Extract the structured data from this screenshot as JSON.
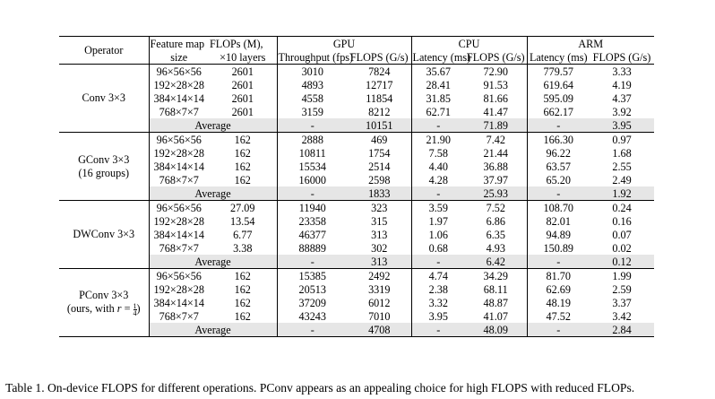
{
  "headers": {
    "operator": "Operator",
    "feature_map_1": "Feature map",
    "feature_map_2": "size",
    "flops_1": "FLOPs (M),",
    "flops_2": "×10 layers",
    "gpu": "GPU",
    "cpu": "CPU",
    "arm": "ARM",
    "throughput": "Throughput (fps)",
    "gpu_flops": "FLOPS (G/s)",
    "cpu_latency": "Latency (ms)",
    "cpu_flops": "FLOPS (G/s)",
    "arm_latency": "Latency (ms)",
    "arm_flops": "FLOPS (G/s)"
  },
  "groups": [
    {
      "operator": "Conv 3×3",
      "rows": [
        [
          "96×56×56",
          "2601",
          "3010",
          "7824",
          "35.67",
          "72.90",
          "779.57",
          "3.33"
        ],
        [
          "192×28×28",
          "2601",
          "4893",
          "12717",
          "28.41",
          "91.53",
          "619.64",
          "4.19"
        ],
        [
          "384×14×14",
          "2601",
          "4558",
          "11854",
          "31.85",
          "81.66",
          "595.09",
          "4.37"
        ],
        [
          "768×7×7",
          "2601",
          "3159",
          "8212",
          "62.71",
          "41.47",
          "662.17",
          "3.92"
        ]
      ],
      "average": [
        "Average",
        "-",
        "10151",
        "-",
        "71.89",
        "-",
        "3.95"
      ]
    },
    {
      "operator": "GConv 3×3",
      "operator_2": "(16 groups)",
      "rows": [
        [
          "96×56×56",
          "162",
          "2888",
          "469",
          "21.90",
          "7.42",
          "166.30",
          "0.97"
        ],
        [
          "192×28×28",
          "162",
          "10811",
          "1754",
          "7.58",
          "21.44",
          "96.22",
          "1.68"
        ],
        [
          "384×14×14",
          "162",
          "15534",
          "2514",
          "4.40",
          "36.88",
          "63.57",
          "2.55"
        ],
        [
          "768×7×7",
          "162",
          "16000",
          "2598",
          "4.28",
          "37.97",
          "65.20",
          "2.49"
        ]
      ],
      "average": [
        "Average",
        "-",
        "1833",
        "-",
        "25.93",
        "-",
        "1.92"
      ]
    },
    {
      "operator": "DWConv 3×3",
      "rows": [
        [
          "96×56×56",
          "27.09",
          "11940",
          "323",
          "3.59",
          "7.52",
          "108.70",
          "0.24"
        ],
        [
          "192×28×28",
          "13.54",
          "23358",
          "315",
          "1.97",
          "6.86",
          "82.01",
          "0.16"
        ],
        [
          "384×14×14",
          "6.77",
          "46377",
          "313",
          "1.06",
          "6.35",
          "94.89",
          "0.07"
        ],
        [
          "768×7×7",
          "3.38",
          "88889",
          "302",
          "0.68",
          "4.93",
          "150.89",
          "0.02"
        ]
      ],
      "average": [
        "Average",
        "-",
        "313",
        "-",
        "6.42",
        "-",
        "0.12"
      ]
    },
    {
      "operator": "PConv 3×3",
      "operator_2a": "(ours, with ",
      "operator_2r": "r",
      "operator_2eq": " = ",
      "frac_num": "1",
      "frac_den": "4",
      "operator_2b": ")",
      "rows": [
        [
          "96×56×56",
          "162",
          "15385",
          "2492",
          "4.74",
          "34.29",
          "81.70",
          "1.99"
        ],
        [
          "192×28×28",
          "162",
          "20513",
          "3319",
          "2.38",
          "68.11",
          "62.69",
          "2.59"
        ],
        [
          "384×14×14",
          "162",
          "37209",
          "6012",
          "3.32",
          "48.87",
          "48.19",
          "3.37"
        ],
        [
          "768×7×7",
          "162",
          "43243",
          "7010",
          "3.95",
          "41.07",
          "47.52",
          "3.42"
        ]
      ],
      "average": [
        "Average",
        "-",
        "4708",
        "-",
        "48.09",
        "-",
        "2.84"
      ]
    }
  ],
  "caption": "Table 1. On-device FLOPS for different operations. PConv appears as an appealing choice for high FLOPS with reduced FLOPs."
}
